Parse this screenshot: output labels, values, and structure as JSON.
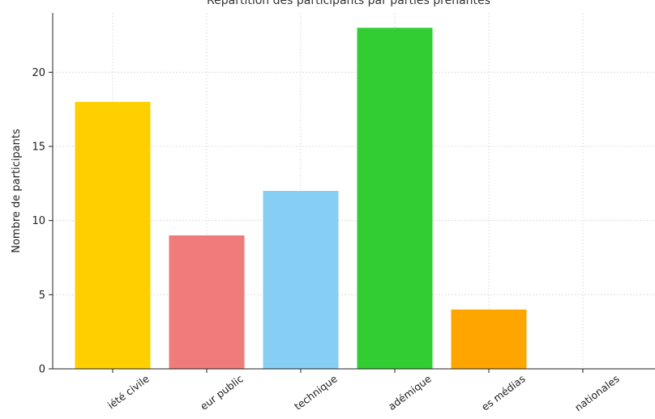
{
  "chart_data": {
    "type": "bar",
    "title": "Répartition des participants par parties prenantes",
    "xlabel": "",
    "ylabel": "Nombre de participants",
    "categories": [
      "iété civile",
      "eur public",
      "technique",
      "adémique",
      "es médias",
      "nationales"
    ],
    "values": [
      18,
      9,
      12,
      23,
      4,
      0
    ],
    "colors": [
      "#FFD000",
      "#EF7B7B",
      "#87CEF5",
      "#32CD32",
      "#FFA500",
      "#9E9E9E"
    ],
    "ylim": [
      0,
      24
    ],
    "yticks": [
      0,
      5,
      10,
      15,
      20
    ],
    "grid": true,
    "legend": "none"
  }
}
